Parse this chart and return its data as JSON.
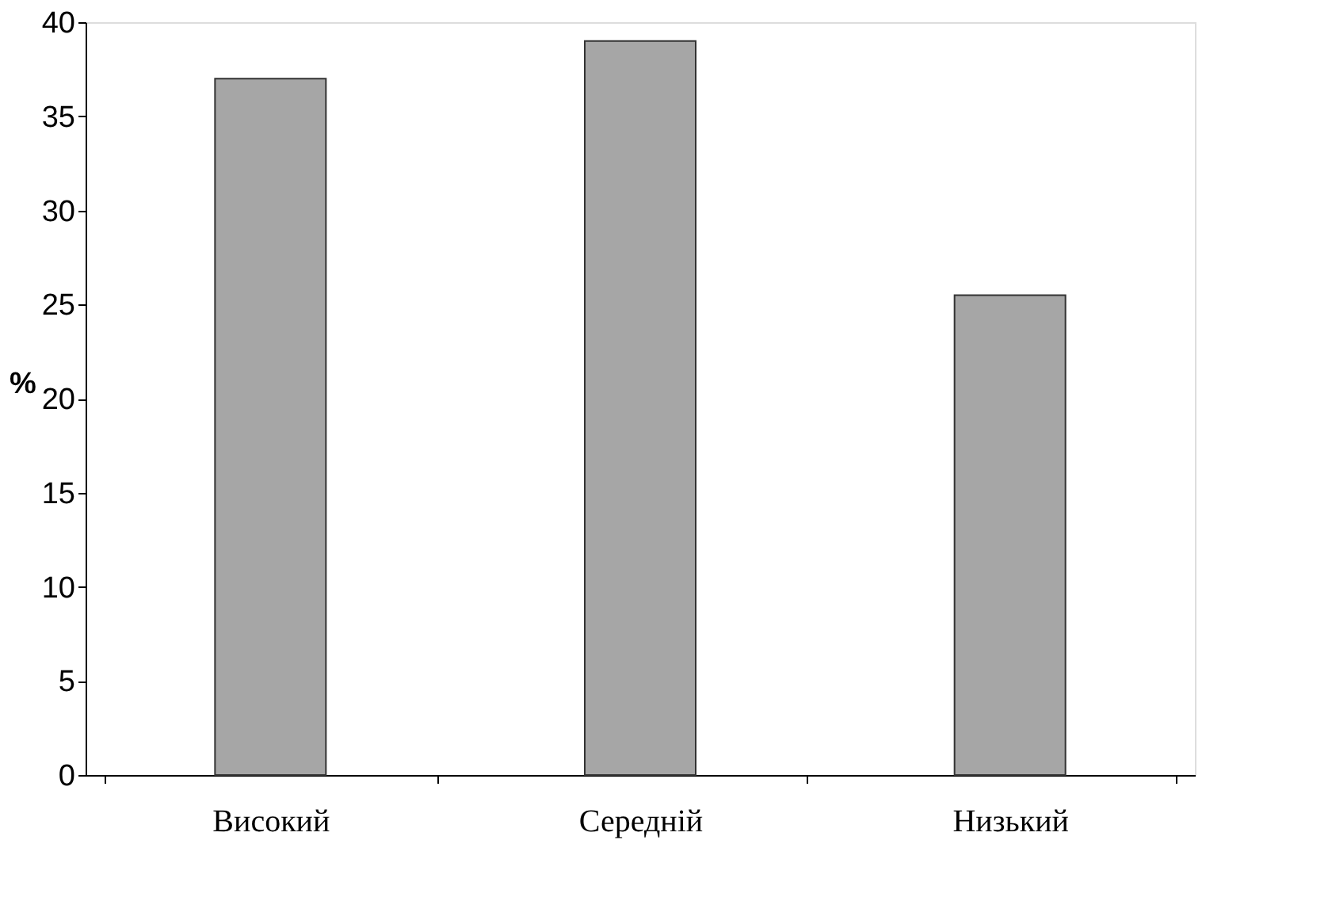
{
  "chart_data": {
    "type": "bar",
    "ylabel": "%",
    "categories": [
      "Високий",
      "Середній",
      "Низький"
    ],
    "values": [
      37,
      39,
      25.5
    ],
    "color": "#a6a6a6",
    "ylim": [
      0,
      40
    ],
    "yticks": [
      0,
      5,
      10,
      15,
      20,
      25,
      30,
      35,
      40
    ],
    "grid": false
  }
}
